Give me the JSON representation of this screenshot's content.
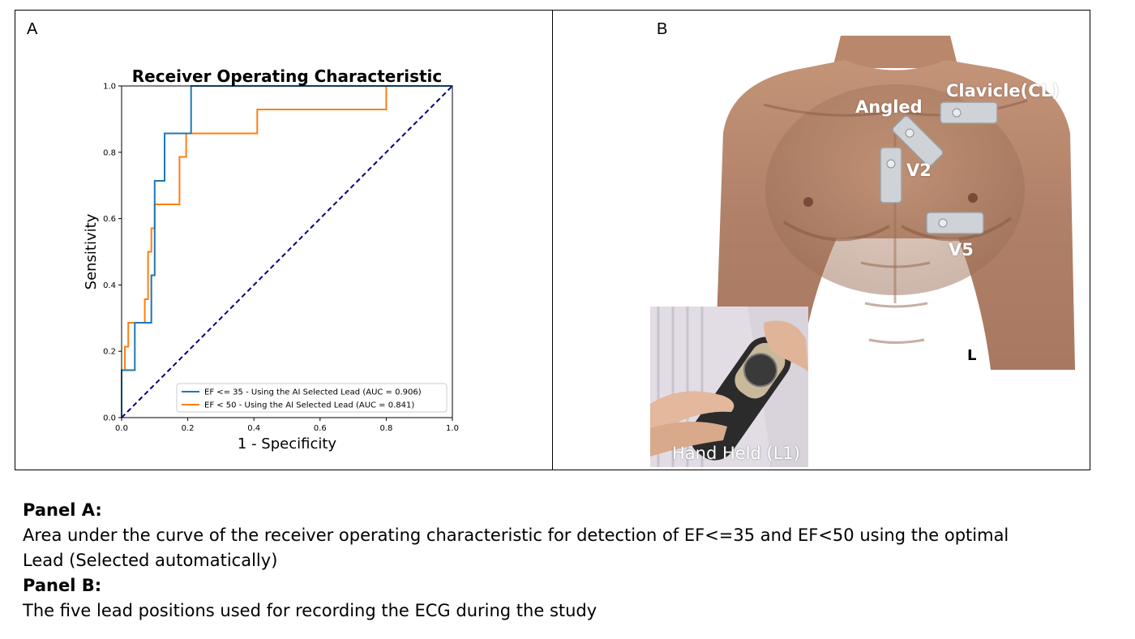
{
  "panel_a": {
    "letter": "A"
  },
  "panel_b": {
    "letter": "B",
    "lead_labels": {
      "clavicle": "Clavicle(CL)",
      "angled": "Angled",
      "v2": "V2",
      "v5": "V5",
      "l": "L"
    },
    "hand_label": "Hand Held (L1)"
  },
  "captions": {
    "panel_a_heading": "Panel A:",
    "panel_a_text_line1": "Area under the curve of the receiver operating characteristic for detection of EF<=35 and EF<50 using the optimal",
    "panel_a_text_line2": "Lead (Selected automatically)",
    "panel_b_heading": "Panel B:",
    "panel_b_text": "The five lead positions used for recording the ECG during the study"
  },
  "colors": {
    "series1": "#1f77b4",
    "series2": "#ff7f0e",
    "diagonal": "#000080",
    "skin": "#b98a6e"
  },
  "chart_data": {
    "type": "line",
    "title": "Receiver Operating Characteristic",
    "xlabel": "1 - Specificity",
    "ylabel": "Sensitivity",
    "xlim": [
      0,
      1
    ],
    "ylim": [
      0,
      1
    ],
    "xticks": [
      "0.0",
      "0.2",
      "0.4",
      "0.6",
      "0.8",
      "1.0"
    ],
    "yticks": [
      "0.0",
      "0.2",
      "0.4",
      "0.6",
      "0.8",
      "1.0"
    ],
    "grid": false,
    "legend_position": "lower right",
    "series": [
      {
        "name": "EF <= 35  - Using the AI Selected Lead (AUC = 0.906)",
        "x": [
          0,
          0,
          0.04,
          0.04,
          0.09,
          0.09,
          0.1,
          0.1,
          0.13,
          0.13,
          0.2,
          0.2,
          0.21,
          0.21,
          1.0
        ],
        "y": [
          0,
          0.143,
          0.143,
          0.286,
          0.286,
          0.429,
          0.429,
          0.714,
          0.714,
          0.857,
          0.857,
          0.857,
          0.857,
          1.0,
          1.0
        ]
      },
      {
        "name": "EF < 50   - Using the AI Selected Lead (AUC = 0.841)",
        "x": [
          0,
          0,
          0.01,
          0.01,
          0.02,
          0.02,
          0.07,
          0.07,
          0.08,
          0.08,
          0.09,
          0.09,
          0.1,
          0.1,
          0.175,
          0.175,
          0.195,
          0.195,
          0.41,
          0.41,
          0.8,
          0.8,
          1.0
        ],
        "y": [
          0,
          0.143,
          0.143,
          0.214,
          0.214,
          0.286,
          0.286,
          0.357,
          0.357,
          0.5,
          0.5,
          0.571,
          0.571,
          0.643,
          0.643,
          0.786,
          0.786,
          0.857,
          0.857,
          0.929,
          0.929,
          1.0,
          1.0
        ]
      },
      {
        "name": "",
        "x": [
          0,
          1
        ],
        "y": [
          0,
          1
        ]
      }
    ]
  }
}
